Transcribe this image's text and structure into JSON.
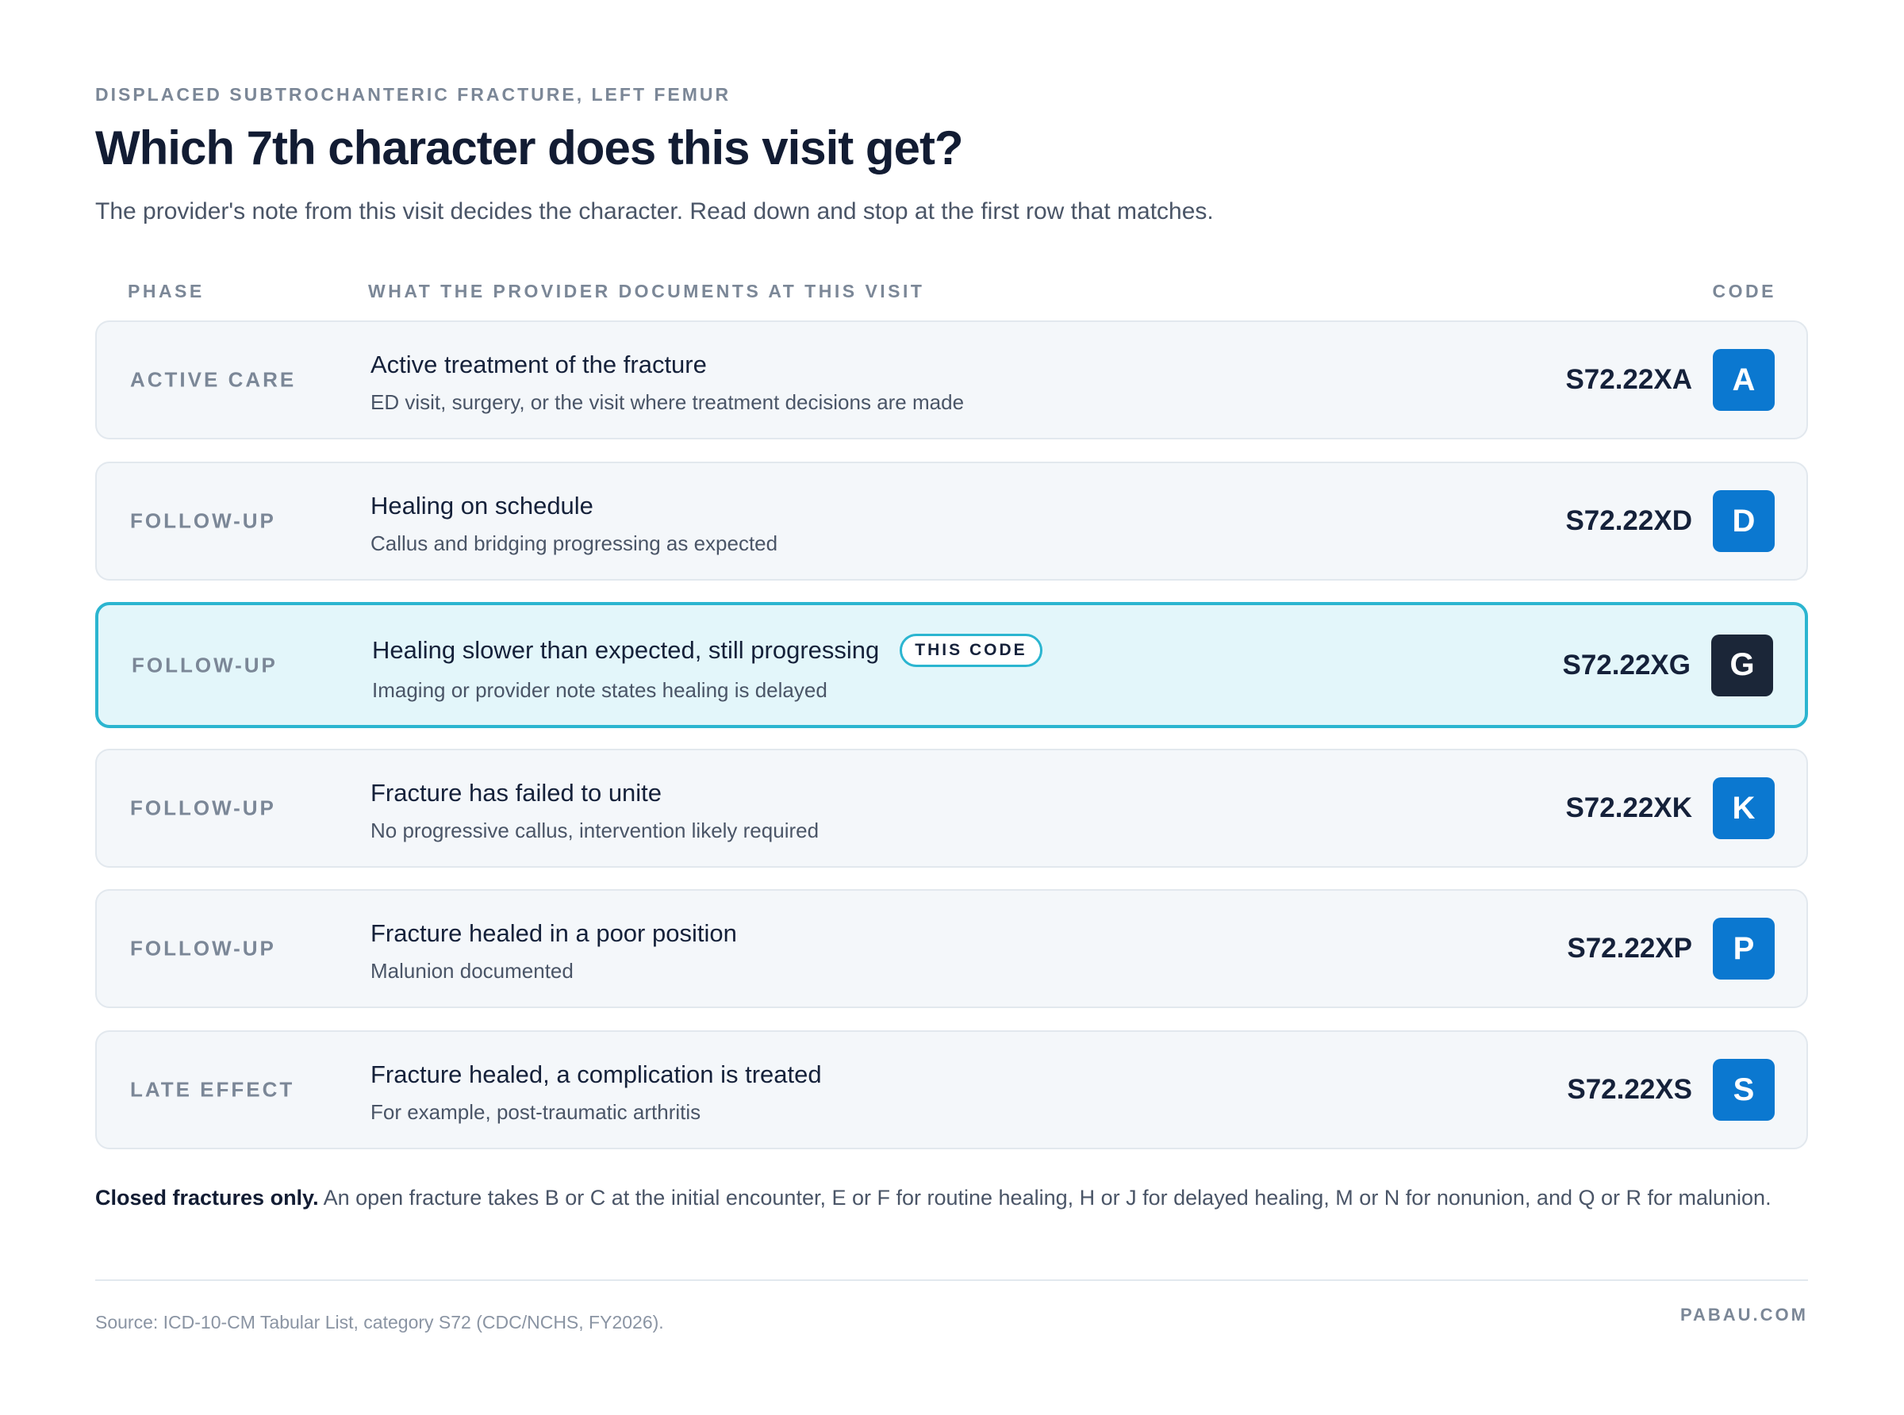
{
  "header": {
    "eyebrow": "DISPLACED SUBTROCHANTERIC FRACTURE, LEFT FEMUR",
    "title": "Which 7th character does this visit get?",
    "subtitle": "The provider's note from this visit decides the character. Read down and stop at the first row that matches."
  },
  "table": {
    "columns": {
      "phase": "PHASE",
      "description": "WHAT THE PROVIDER DOCUMENTS AT THIS VISIT",
      "code": "CODE"
    },
    "rows": [
      {
        "phase": "ACTIVE CARE",
        "title": "Active treatment of the fracture",
        "description": "ED visit, surgery, or the visit where treatment decisions are made",
        "code": "S72.22XA",
        "letter": "A"
      },
      {
        "phase": "FOLLOW-UP",
        "title": "Healing on schedule",
        "description": "Callus and bridging progressing as expected",
        "code": "S72.22XD",
        "letter": "D"
      },
      {
        "phase": "FOLLOW-UP",
        "title": "Healing slower than expected, still progressing",
        "tag": "THIS CODE",
        "description": "Imaging or provider note states healing is delayed",
        "code": "S72.22XG",
        "letter": "G"
      },
      {
        "phase": "FOLLOW-UP",
        "title": "Fracture has failed to unite",
        "description": "No progressive callus, intervention likely required",
        "code": "S72.22XK",
        "letter": "K"
      },
      {
        "phase": "FOLLOW-UP",
        "title": "Fracture healed in a poor position",
        "description": "Malunion documented",
        "code": "S72.22XP",
        "letter": "P"
      },
      {
        "phase": "LATE EFFECT",
        "title": "Fracture healed, a complication is treated",
        "description": "For example, post-traumatic arthritis",
        "code": "S72.22XS",
        "letter": "S"
      }
    ]
  },
  "note": {
    "lead": "Closed fractures only.",
    "text": "An open fracture takes B or C at the initial encounter, E or F for routine healing, H or J for delayed healing, M or N for nonunion, and Q or R for malunion."
  },
  "footer": {
    "source": "Source: ICD-10-CM Tabular List, category S72 (CDC/NCHS, FY2026).",
    "brand": "PABAU.COM"
  }
}
